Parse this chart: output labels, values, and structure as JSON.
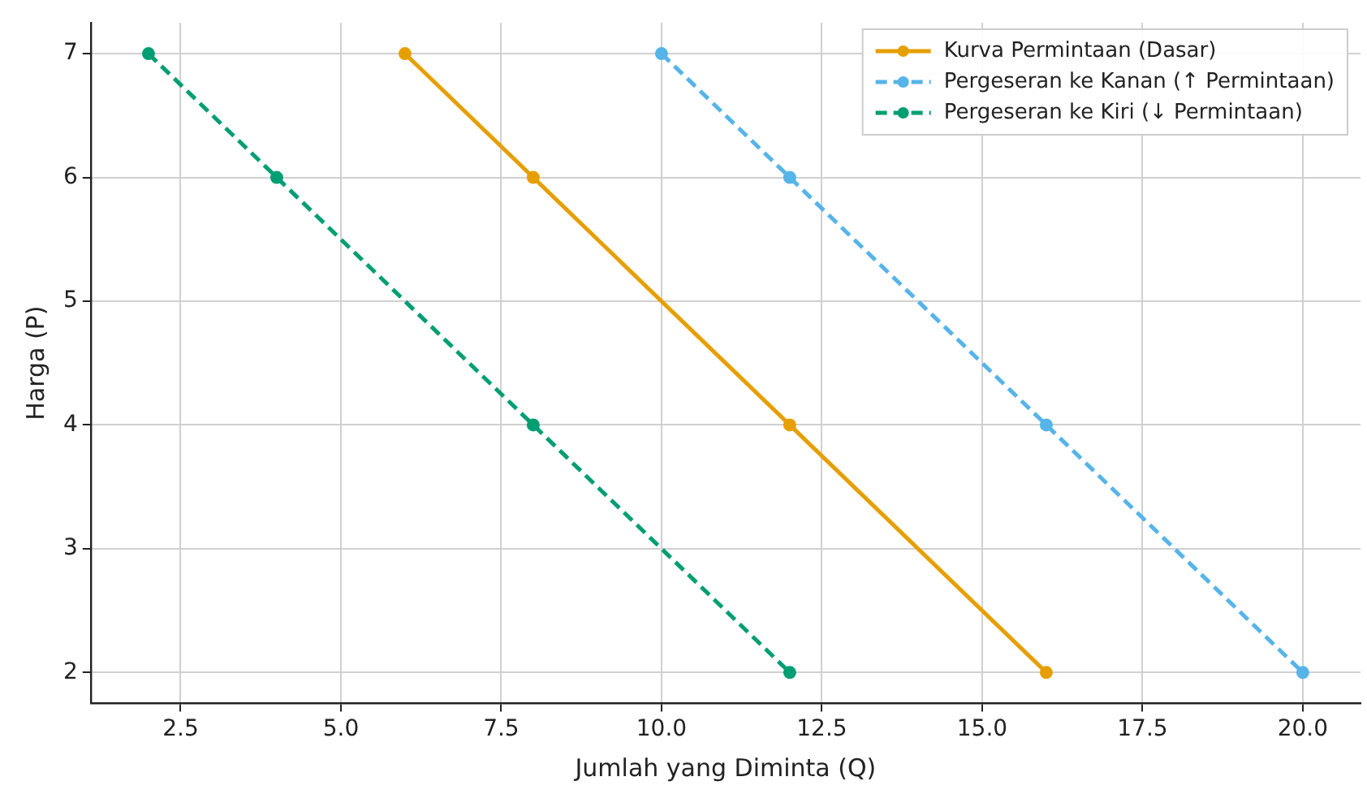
{
  "chart_data": {
    "type": "line",
    "xlabel": "Jumlah yang Diminta (Q)",
    "ylabel": "Harga (P)",
    "series": [
      {
        "name": "Kurva Permintaan (Dasar)",
        "color": "#e69f00",
        "x": [
          6,
          8,
          12,
          16
        ],
        "values": [
          7,
          6,
          4,
          2
        ],
        "line_style": "solid"
      },
      {
        "name": "Pergeseran ke Kanan (↑ Permintaan)",
        "color": "#56b4e9",
        "x": [
          10,
          12,
          16,
          20
        ],
        "values": [
          7,
          6,
          4,
          2
        ],
        "line_style": "dashed"
      },
      {
        "name": "Pergeseran ke Kiri (↓ Permintaan)",
        "color": "#009e73",
        "x": [
          2,
          4,
          8,
          12
        ],
        "values": [
          7,
          6,
          4,
          2
        ],
        "line_style": "dashed"
      }
    ],
    "xlim": [
      1.1,
      20.9
    ],
    "ylim": [
      1.75,
      7.25
    ],
    "xticks": [
      2.5,
      {
        "value": 5,
        "label": "5.0"
      },
      7.5,
      {
        "value": 10,
        "label": "10.0"
      },
      12.5,
      {
        "value": 15,
        "label": "15.0"
      },
      17.5,
      {
        "value": 20,
        "label": "20.0"
      }
    ],
    "yticks": [
      2,
      3,
      4,
      5,
      6,
      7
    ],
    "grid": true,
    "legend": "top right",
    "marker": "circle"
  }
}
